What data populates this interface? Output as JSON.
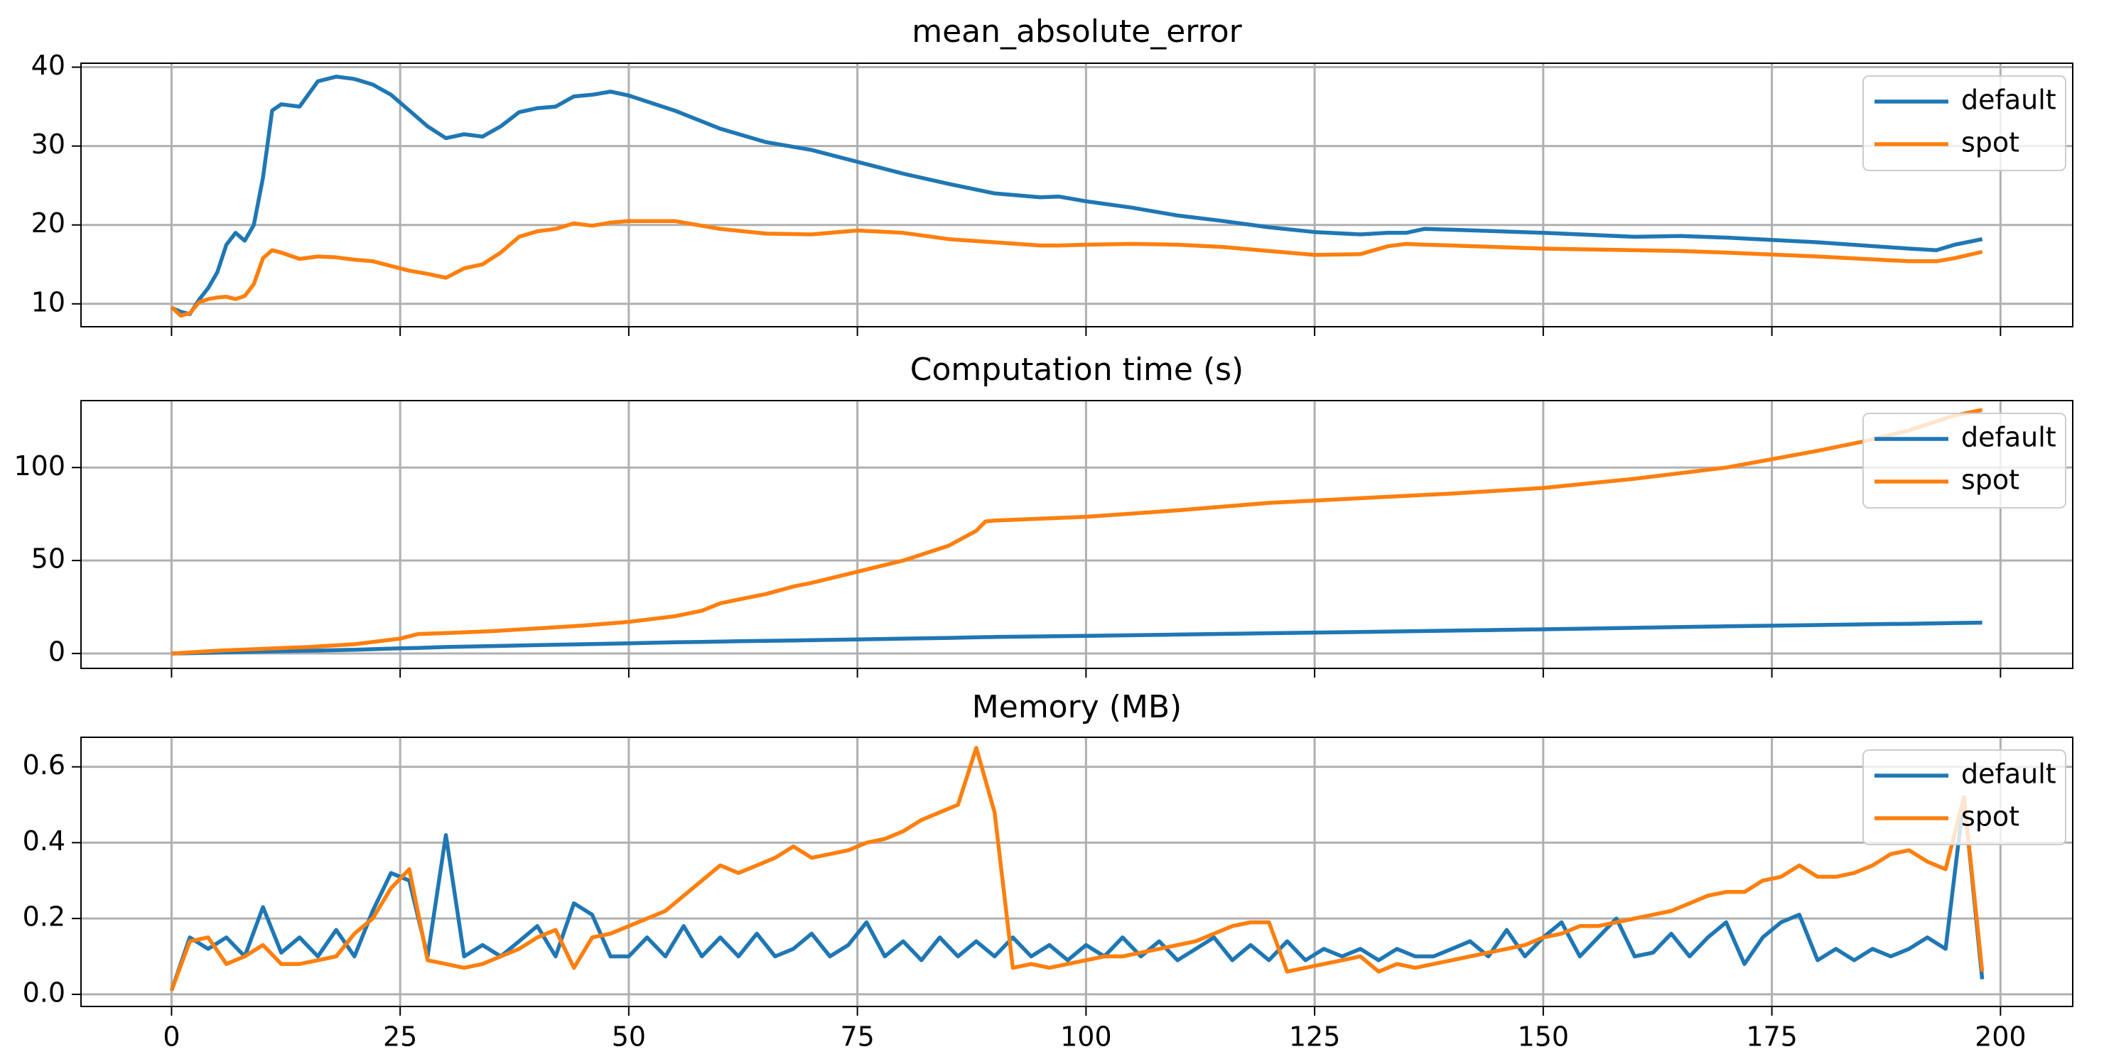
{
  "chart_data": [
    {
      "type": "line",
      "title": "mean_absolute_error",
      "x": [
        0,
        1,
        2,
        3,
        4,
        5,
        6,
        7,
        8,
        9,
        10,
        11,
        12,
        14,
        16,
        18,
        20,
        22,
        24,
        26,
        28,
        30,
        32,
        34,
        36,
        38,
        40,
        42,
        44,
        46,
        48,
        50,
        55,
        60,
        65,
        70,
        75,
        80,
        85,
        90,
        95,
        97,
        100,
        105,
        110,
        115,
        120,
        125,
        130,
        133,
        135,
        137,
        140,
        150,
        160,
        165,
        170,
        180,
        190,
        193,
        195,
        198
      ],
      "series": [
        {
          "name": "default",
          "color": "#1f77b4",
          "values": [
            9.5,
            9,
            8.7,
            10.5,
            12,
            14,
            17.5,
            19,
            18,
            20,
            26,
            34.5,
            35.3,
            35,
            38.2,
            38.8,
            38.5,
            37.8,
            36.5,
            34.5,
            32.5,
            31,
            31.5,
            31.2,
            32.5,
            34.3,
            34.8,
            35,
            36.3,
            36.5,
            36.9,
            36.4,
            34.5,
            32.2,
            30.5,
            29.5,
            28,
            26.5,
            25.2,
            24,
            23.5,
            23.6,
            23,
            22.2,
            21.2,
            20.5,
            19.7,
            19.1,
            18.8,
            19,
            19,
            19.5,
            19.4,
            19,
            18.5,
            18.6,
            18.4,
            17.8,
            17,
            16.8,
            17.5,
            18.2
          ]
        },
        {
          "name": "spot",
          "color": "#ff7f0e",
          "values": [
            9.6,
            8.5,
            8.8,
            10.2,
            10.6,
            10.8,
            10.9,
            10.6,
            11,
            12.5,
            15.8,
            16.8,
            16.5,
            15.7,
            16,
            15.9,
            15.6,
            15.4,
            14.8,
            14.2,
            13.8,
            13.3,
            14.5,
            15,
            16.5,
            18.5,
            19.2,
            19.5,
            20.2,
            19.9,
            20.3,
            20.5,
            20.5,
            19.5,
            18.9,
            18.8,
            19.3,
            19,
            18.2,
            17.8,
            17.4,
            17.4,
            17.5,
            17.6,
            17.5,
            17.2,
            16.7,
            16.2,
            16.3,
            17.3,
            17.6,
            17.5,
            17.4,
            17,
            16.8,
            16.7,
            16.5,
            16,
            15.4,
            15.4,
            15.8,
            16.6
          ]
        }
      ],
      "xlim": [
        -9.9,
        207.9
      ],
      "xticks": [
        0,
        25,
        50,
        75,
        100,
        125,
        150,
        175,
        200
      ],
      "ylim": [
        7.1,
        40.5
      ],
      "yticks": [
        10,
        20,
        30,
        40
      ],
      "grid": true,
      "legend": "upper right"
    },
    {
      "type": "line",
      "title": "Computation time (s)",
      "x": [
        0,
        5,
        10,
        15,
        20,
        25,
        27,
        30,
        35,
        40,
        45,
        50,
        55,
        58,
        60,
        62,
        65,
        68,
        70,
        75,
        80,
        85,
        88,
        89,
        90,
        95,
        100,
        110,
        120,
        130,
        140,
        150,
        160,
        170,
        180,
        185,
        190,
        195,
        198
      ],
      "series": [
        {
          "name": "default",
          "color": "#1f77b4",
          "values": [
            0,
            0.5,
            1,
            1.5,
            2,
            2.8,
            3,
            3.5,
            4,
            4.5,
            5,
            5.5,
            6,
            6.2,
            6.4,
            6.6,
            6.8,
            7,
            7.2,
            7.6,
            8,
            8.4,
            8.7,
            8.8,
            8.9,
            9.2,
            9.5,
            10.2,
            10.9,
            11.6,
            12.3,
            13,
            13.8,
            14.6,
            15.3,
            15.7,
            16,
            16.4,
            16.6
          ]
        },
        {
          "name": "spot",
          "color": "#ff7f0e",
          "values": [
            0,
            1.5,
            2.5,
            3.5,
            5,
            8,
            10.5,
            11,
            12,
            13.5,
            15,
            17,
            20,
            23,
            27,
            29,
            32,
            36,
            38,
            44,
            50,
            58,
            66,
            71,
            71.5,
            72.5,
            73.5,
            77,
            81,
            83.5,
            86,
            89,
            94,
            100,
            109,
            114,
            120,
            128,
            131
          ]
        }
      ],
      "xlim": [
        -9.9,
        207.9
      ],
      "xticks": [
        0,
        25,
        50,
        75,
        100,
        125,
        150,
        175,
        200
      ],
      "ylim": [
        -8,
        136
      ],
      "yticks": [
        0,
        50,
        100
      ],
      "grid": true,
      "legend": "upper right"
    },
    {
      "type": "line",
      "title": "Memory (MB)",
      "x": [
        0,
        2,
        4,
        6,
        8,
        10,
        12,
        14,
        16,
        18,
        20,
        22,
        24,
        26,
        28,
        30,
        32,
        34,
        36,
        38,
        40,
        42,
        44,
        46,
        48,
        50,
        52,
        54,
        56,
        58,
        60,
        62,
        64,
        66,
        68,
        70,
        72,
        74,
        76,
        78,
        80,
        82,
        84,
        86,
        88,
        90,
        92,
        94,
        96,
        98,
        100,
        102,
        104,
        106,
        108,
        110,
        112,
        114,
        116,
        118,
        120,
        122,
        124,
        126,
        128,
        130,
        132,
        134,
        136,
        138,
        140,
        142,
        144,
        146,
        148,
        150,
        152,
        154,
        156,
        158,
        160,
        162,
        164,
        166,
        168,
        170,
        172,
        174,
        176,
        178,
        180,
        182,
        184,
        186,
        188,
        190,
        192,
        194,
        196,
        198
      ],
      "series": [
        {
          "name": "default",
          "color": "#1f77b4",
          "values": [
            0.01,
            0.15,
            0.12,
            0.15,
            0.1,
            0.23,
            0.11,
            0.15,
            0.1,
            0.17,
            0.1,
            0.22,
            0.32,
            0.3,
            0.1,
            0.42,
            0.1,
            0.13,
            0.1,
            0.14,
            0.18,
            0.1,
            0.24,
            0.21,
            0.1,
            0.1,
            0.15,
            0.1,
            0.18,
            0.1,
            0.15,
            0.1,
            0.16,
            0.1,
            0.12,
            0.16,
            0.1,
            0.13,
            0.19,
            0.1,
            0.14,
            0.09,
            0.15,
            0.1,
            0.14,
            0.1,
            0.15,
            0.1,
            0.13,
            0.09,
            0.13,
            0.1,
            0.15,
            0.1,
            0.14,
            0.09,
            0.12,
            0.15,
            0.09,
            0.13,
            0.09,
            0.14,
            0.09,
            0.12,
            0.1,
            0.12,
            0.09,
            0.12,
            0.1,
            0.1,
            0.12,
            0.14,
            0.1,
            0.17,
            0.1,
            0.15,
            0.19,
            0.1,
            0.15,
            0.2,
            0.1,
            0.11,
            0.16,
            0.1,
            0.15,
            0.19,
            0.08,
            0.15,
            0.19,
            0.21,
            0.09,
            0.12,
            0.09,
            0.12,
            0.1,
            0.12,
            0.15,
            0.12,
            0.52,
            0.04
          ]
        },
        {
          "name": "spot",
          "color": "#ff7f0e",
          "values": [
            0.01,
            0.14,
            0.15,
            0.08,
            0.1,
            0.13,
            0.08,
            0.08,
            0.09,
            0.1,
            0.16,
            0.2,
            0.28,
            0.33,
            0.09,
            0.08,
            0.07,
            0.08,
            0.1,
            0.12,
            0.15,
            0.17,
            0.07,
            0.15,
            0.16,
            0.18,
            0.2,
            0.22,
            0.26,
            0.3,
            0.34,
            0.32,
            0.34,
            0.36,
            0.39,
            0.36,
            0.37,
            0.38,
            0.4,
            0.41,
            0.43,
            0.46,
            0.48,
            0.5,
            0.65,
            0.48,
            0.07,
            0.08,
            0.07,
            0.08,
            0.09,
            0.1,
            0.1,
            0.11,
            0.12,
            0.13,
            0.14,
            0.16,
            0.18,
            0.19,
            0.19,
            0.06,
            0.07,
            0.08,
            0.09,
            0.1,
            0.06,
            0.08,
            0.07,
            0.08,
            0.09,
            0.1,
            0.11,
            0.12,
            0.13,
            0.15,
            0.16,
            0.18,
            0.18,
            0.19,
            0.2,
            0.21,
            0.22,
            0.24,
            0.26,
            0.27,
            0.27,
            0.3,
            0.31,
            0.34,
            0.31,
            0.31,
            0.32,
            0.34,
            0.37,
            0.38,
            0.35,
            0.33,
            0.52,
            0.06
          ]
        }
      ],
      "xlim": [
        -9.9,
        207.9
      ],
      "xticks": [
        0,
        25,
        50,
        75,
        100,
        125,
        150,
        175,
        200
      ],
      "ylim": [
        -0.032,
        0.678
      ],
      "yticks": [
        {
          "value": 0,
          "label": "0.0"
        },
        0.2,
        0.4,
        0.6
      ],
      "grid": true,
      "legend": "upper right"
    }
  ]
}
